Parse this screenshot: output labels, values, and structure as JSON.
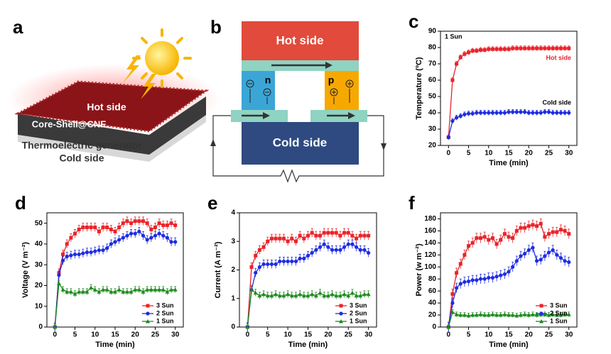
{
  "panels": {
    "a": {
      "label": "a",
      "hot": "Hot side",
      "layer": "Core-Shell@CNF",
      "generator": "Thermoelectric generator",
      "cold": "Cold side"
    },
    "b": {
      "label": "b",
      "hot": "Hot side",
      "n": "n",
      "p": "p",
      "cold": "Cold side"
    }
  },
  "chart_data": [
    {
      "type": "line",
      "label": "c",
      "annotation": "1 Sun",
      "xlabel": "Time (min)",
      "ylabel": "Temperature (ºC)",
      "legend": "none",
      "x": [
        0,
        1,
        2,
        3,
        4,
        5,
        6,
        7,
        8,
        9,
        10,
        11,
        12,
        13,
        14,
        15,
        16,
        17,
        18,
        19,
        20,
        21,
        22,
        23,
        24,
        25,
        26,
        27,
        28,
        29,
        30
      ],
      "xlim": [
        -2,
        32
      ],
      "ylim": [
        20,
        90
      ],
      "xticks": [
        0,
        5,
        10,
        15,
        20,
        25,
        30
      ],
      "yticks": [
        20,
        30,
        40,
        50,
        60,
        70,
        80,
        90
      ],
      "series": [
        {
          "name": "Hot side",
          "color": "#e8242a",
          "marker": "square",
          "error": 1.5,
          "values": [
            25,
            60,
            70,
            74,
            76,
            77,
            78,
            78,
            78.5,
            78.5,
            79,
            79,
            79,
            79,
            79,
            79,
            79.5,
            79.5,
            79.5,
            79.5,
            79.5,
            79.5,
            79.5,
            79.5,
            79.5,
            79.5,
            79.5,
            79.5,
            79.5,
            79.5,
            79.5
          ]
        },
        {
          "name": "Cold side",
          "color": "#1f2ce0",
          "marker": "circle",
          "error": 1.5,
          "values": [
            25,
            35,
            37,
            38,
            39,
            39.5,
            39.5,
            40,
            40,
            40,
            40,
            40,
            40,
            40,
            40,
            40.5,
            40.5,
            40.5,
            40.5,
            40.5,
            40,
            40,
            40,
            40,
            40.5,
            40.5,
            40,
            40,
            40,
            40,
            40
          ]
        }
      ]
    },
    {
      "type": "line",
      "label": "d",
      "xlabel": "Time (min)",
      "ylabel": "Voltage (V m⁻²)",
      "legend": "lower right",
      "x": [
        0,
        1,
        2,
        3,
        4,
        5,
        6,
        7,
        8,
        9,
        10,
        11,
        12,
        13,
        14,
        15,
        16,
        17,
        18,
        19,
        20,
        21,
        22,
        23,
        24,
        25,
        26,
        27,
        28,
        29,
        30
      ],
      "xlim": [
        -2,
        32
      ],
      "ylim": [
        0,
        55
      ],
      "xticks": [
        0,
        5,
        10,
        15,
        20,
        25,
        30
      ],
      "yticks": [
        0,
        10,
        20,
        30,
        40,
        50
      ],
      "series": [
        {
          "name": "3 Sun",
          "color": "#e8242a",
          "marker": "square",
          "error": 2,
          "values": [
            0,
            26,
            35,
            40,
            43,
            45,
            47,
            48,
            48,
            48,
            48,
            46,
            48,
            48,
            47,
            46,
            48,
            50,
            51,
            50,
            51,
            51,
            51,
            50,
            47,
            48,
            50,
            49,
            49,
            50,
            49
          ]
        },
        {
          "name": "2 Sun",
          "color": "#1f2ce0",
          "marker": "circle",
          "error": 2,
          "values": [
            0,
            25,
            32,
            34,
            34.5,
            35,
            35,
            35.5,
            36,
            36,
            36.5,
            37,
            37,
            38,
            40,
            41,
            42,
            43,
            44,
            45,
            45,
            46,
            44,
            42,
            43,
            44,
            45,
            44,
            43,
            41,
            41
          ]
        },
        {
          "name": "1 Sun",
          "color": "#1d8a1d",
          "marker": "triangle",
          "error": 1.5,
          "values": [
            0,
            21,
            18,
            17,
            17,
            16,
            17,
            17,
            17,
            19,
            18,
            17,
            18,
            18,
            17,
            17,
            18,
            17,
            17,
            17,
            18,
            18,
            17,
            18,
            18,
            18,
            18,
            18,
            17,
            18,
            18
          ]
        }
      ]
    },
    {
      "type": "line",
      "label": "e",
      "xlabel": "Time (min)",
      "ylabel": "Current (A m⁻²)",
      "legend": "lower right",
      "x": [
        0,
        1,
        2,
        3,
        4,
        5,
        6,
        7,
        8,
        9,
        10,
        11,
        12,
        13,
        14,
        15,
        16,
        17,
        18,
        19,
        20,
        21,
        22,
        23,
        24,
        25,
        26,
        27,
        28,
        29,
        30
      ],
      "xlim": [
        -2,
        32
      ],
      "ylim": [
        0,
        4
      ],
      "xticks": [
        0,
        5,
        10,
        15,
        20,
        25,
        30
      ],
      "yticks": [
        0,
        1,
        2,
        3,
        4
      ],
      "series": [
        {
          "name": "3 Sun",
          "color": "#e8242a",
          "marker": "square",
          "error": 0.15,
          "values": [
            0,
            2.1,
            2.5,
            2.7,
            2.8,
            3.0,
            3.1,
            3.1,
            3.1,
            3.1,
            3.0,
            3.1,
            3.0,
            3.2,
            3.1,
            3.2,
            3.3,
            3.2,
            3.2,
            3.3,
            3.3,
            3.3,
            3.3,
            3.2,
            3.3,
            3.3,
            3.2,
            3.1,
            3.2,
            3.2,
            3.2
          ]
        },
        {
          "name": "2 Sun",
          "color": "#1f2ce0",
          "marker": "circle",
          "error": 0.15,
          "values": [
            0,
            1.3,
            1.9,
            2.1,
            2.2,
            2.2,
            2.2,
            2.2,
            2.3,
            2.3,
            2.3,
            2.3,
            2.3,
            2.4,
            2.4,
            2.5,
            2.6,
            2.7,
            2.8,
            2.9,
            2.8,
            2.7,
            2.7,
            2.7,
            2.8,
            2.9,
            2.9,
            2.8,
            2.7,
            2.7,
            2.6
          ]
        },
        {
          "name": "1 Sun",
          "color": "#1d8a1d",
          "marker": "triangle",
          "error": 0.12,
          "values": [
            0,
            1.3,
            1.2,
            1.1,
            1.15,
            1.1,
            1.1,
            1.15,
            1.1,
            1.1,
            1.15,
            1.1,
            1.1,
            1.15,
            1.1,
            1.1,
            1.15,
            1.1,
            1.2,
            1.1,
            1.1,
            1.15,
            1.1,
            1.1,
            1.15,
            1.1,
            1.2,
            1.1,
            1.1,
            1.15,
            1.15
          ]
        }
      ]
    },
    {
      "type": "line",
      "label": "f",
      "xlabel": "Time (min)",
      "ylabel": "Power (w m⁻²)",
      "legend": "lower right",
      "x": [
        0,
        1,
        2,
        3,
        4,
        5,
        6,
        7,
        8,
        9,
        10,
        11,
        12,
        13,
        14,
        15,
        16,
        17,
        18,
        19,
        20,
        21,
        22,
        23,
        24,
        25,
        26,
        27,
        28,
        29,
        30
      ],
      "xlim": [
        -2,
        32
      ],
      "ylim": [
        0,
        190
      ],
      "xticks": [
        0,
        5,
        10,
        15,
        20,
        25,
        30
      ],
      "yticks": [
        0,
        20,
        40,
        60,
        80,
        100,
        120,
        140,
        160,
        180
      ],
      "series": [
        {
          "name": "3 Sun",
          "color": "#e8242a",
          "marker": "square",
          "error": 8,
          "values": [
            0,
            55,
            90,
            105,
            120,
            135,
            140,
            148,
            148,
            150,
            145,
            148,
            138,
            145,
            155,
            150,
            148,
            160,
            165,
            165,
            168,
            170,
            168,
            172,
            150,
            155,
            158,
            158,
            162,
            160,
            155
          ]
        },
        {
          "name": "2 Sun",
          "color": "#1f2ce0",
          "marker": "circle",
          "error": 8,
          "values": [
            0,
            40,
            65,
            72,
            75,
            76,
            78,
            78,
            80,
            80,
            82,
            82,
            84,
            86,
            88,
            92,
            100,
            110,
            118,
            122,
            128,
            132,
            110,
            112,
            118,
            124,
            128,
            120,
            115,
            110,
            108
          ]
        },
        {
          "name": "1 Sun",
          "color": "#1d8a1d",
          "marker": "triangle",
          "error": 4,
          "values": [
            0,
            25,
            21,
            20,
            20,
            19,
            20,
            20,
            21,
            20,
            20,
            21,
            20,
            20,
            21,
            20,
            20,
            19,
            20,
            21,
            20,
            21,
            20,
            21,
            21,
            20,
            21,
            20,
            20,
            21,
            21
          ]
        }
      ]
    }
  ]
}
